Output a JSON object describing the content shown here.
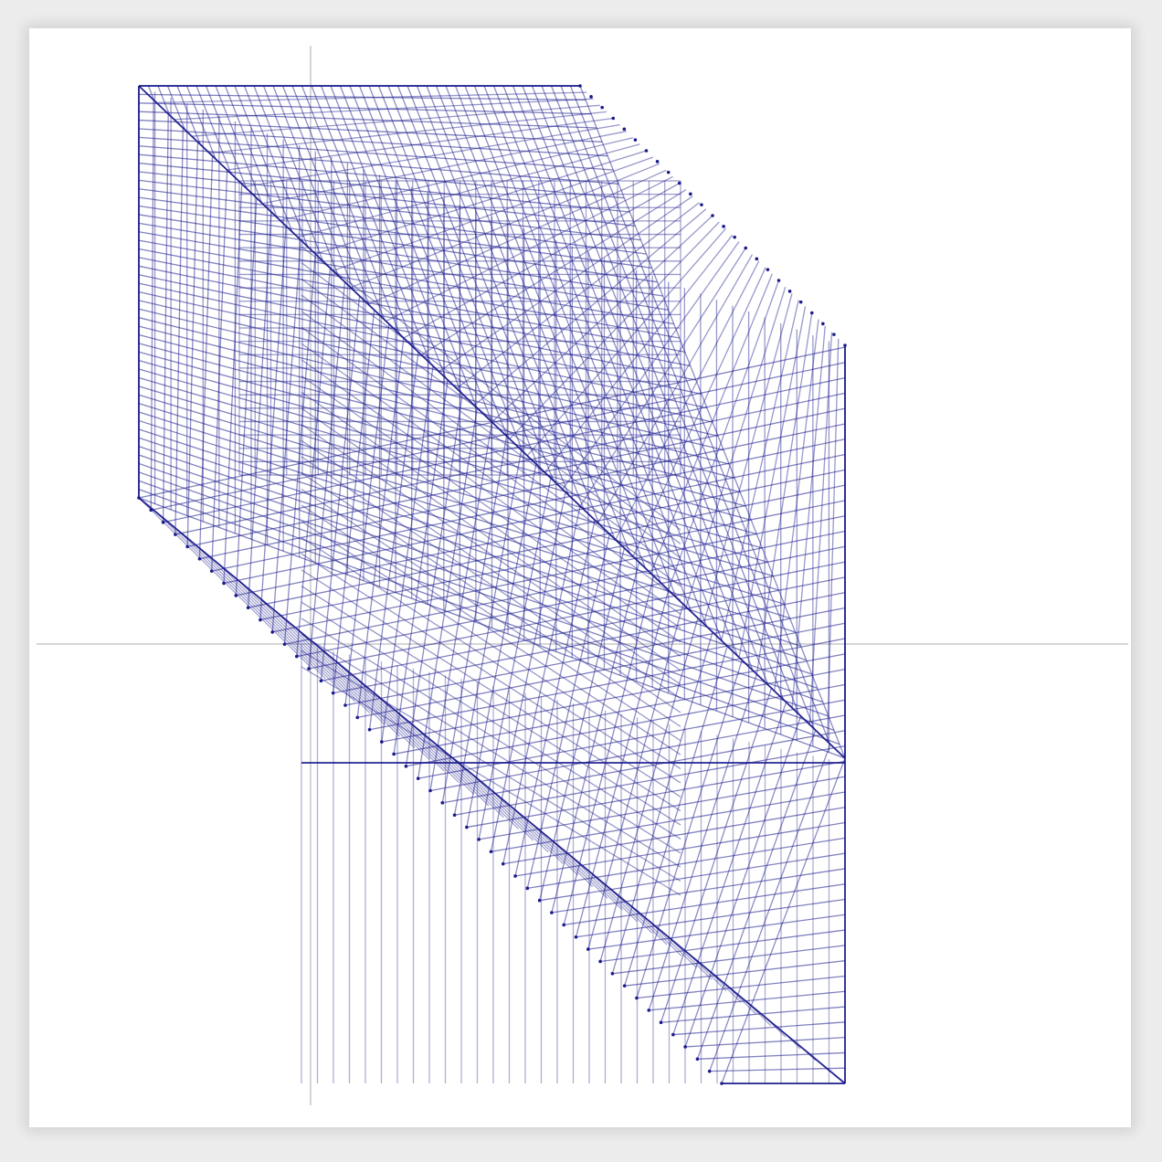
{
  "colors": {
    "line": "#1a1a8c",
    "axis": "#c8c8c8",
    "background": "#ffffff"
  }
}
